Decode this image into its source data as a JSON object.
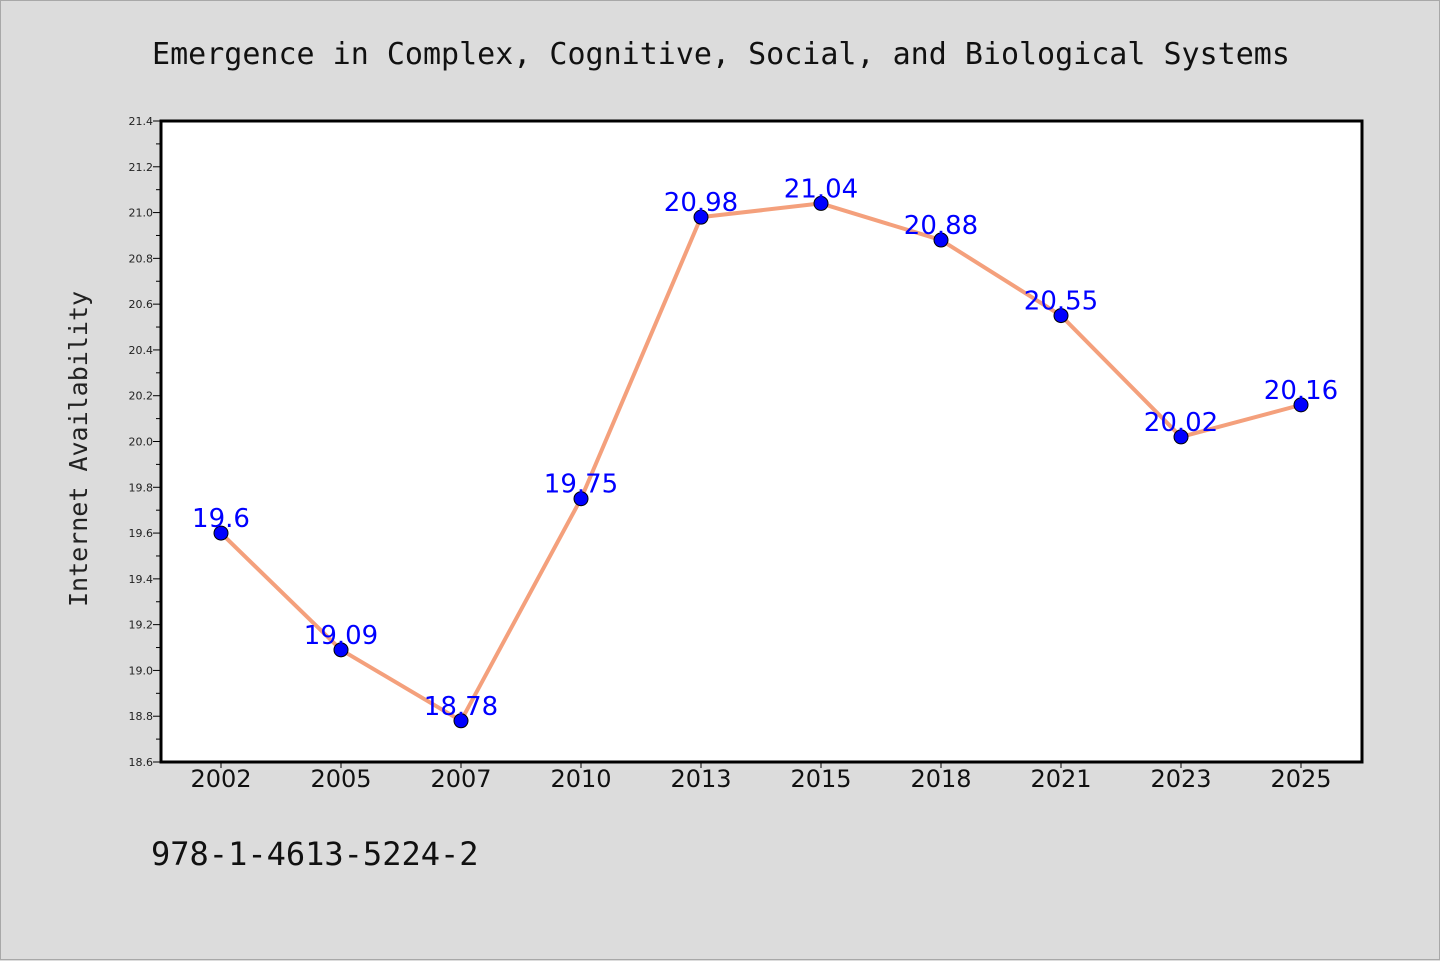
{
  "chart_data": {
    "type": "line",
    "title": "Emergence in Complex, Cognitive, Social, and Biological Systems",
    "xlabel": "",
    "ylabel": "Internet Availability",
    "categories": [
      "2002",
      "2005",
      "2007",
      "2010",
      "2013",
      "2015",
      "2018",
      "2021",
      "2023",
      "2025"
    ],
    "series": [
      {
        "values": [
          19.6,
          19.09,
          18.78,
          19.75,
          20.98,
          21.04,
          20.88,
          20.55,
          20.02,
          20.16
        ],
        "data_labels": [
          "19.6",
          "19.09",
          "18.78",
          "19.75",
          "20.98",
          "21.04",
          "20.88",
          "20.55",
          "20.02",
          "20.16"
        ],
        "line_color": "#f4a07c",
        "marker_color": "#0000ff"
      }
    ],
    "ylim": [
      18.6,
      21.4
    ],
    "yticks": [
      18.6,
      18.8,
      19.0,
      19.2,
      19.4,
      19.6,
      19.8,
      20.0,
      20.2,
      20.4,
      20.6,
      20.8,
      21.0,
      21.2,
      21.4
    ],
    "ytick_labels": [
      "18.6",
      "18.8",
      "19.0",
      "19.2",
      "19.4",
      "19.6",
      "19.8",
      "20.0",
      "20.2",
      "20.4",
      "20.6",
      "20.8",
      "21.0",
      "21.2",
      "21.4"
    ],
    "grid": false,
    "legend": "none"
  },
  "footer": {
    "isbn": "978-1-4613-5224-2"
  },
  "colors": {
    "background": "#dcdcdc",
    "plot_background": "#ffffff",
    "axis": "#000000"
  }
}
